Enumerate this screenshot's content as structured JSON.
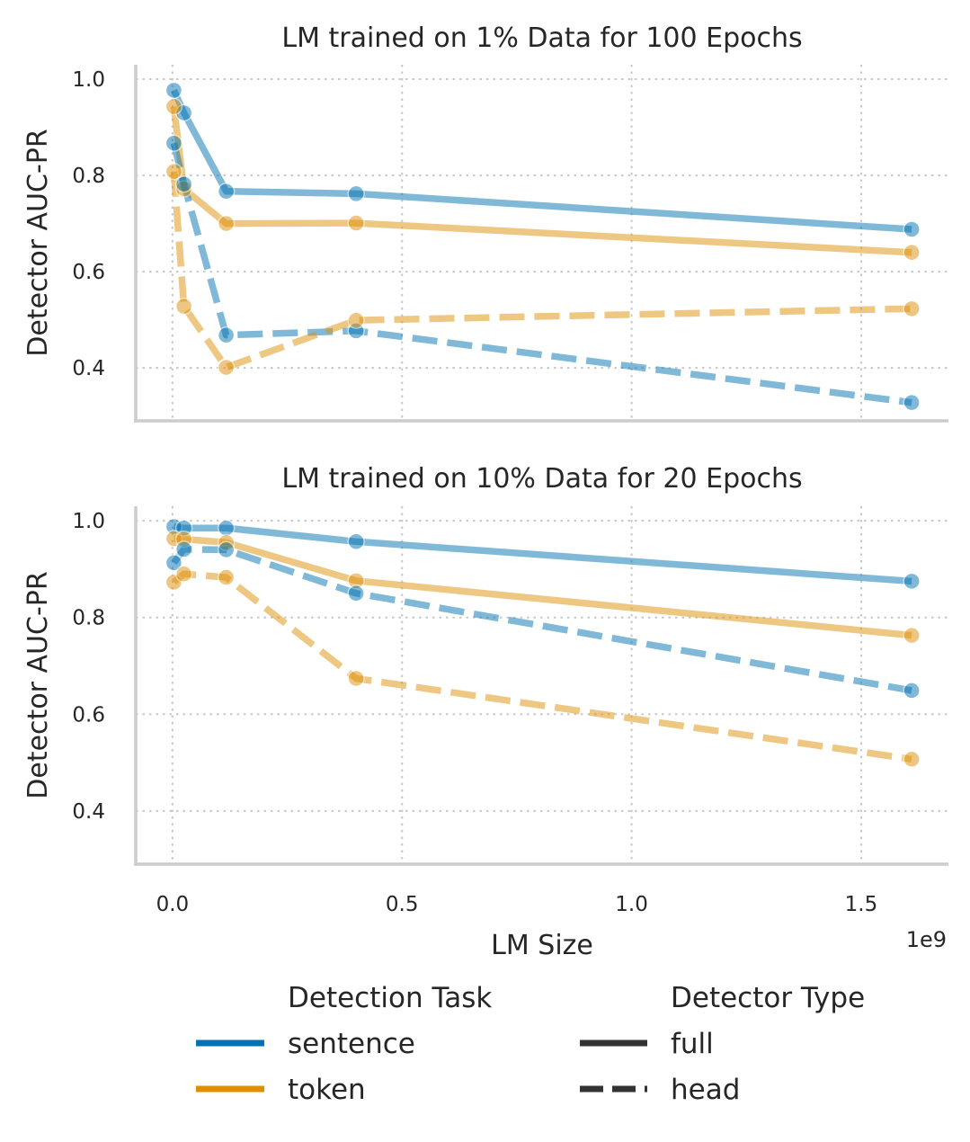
{
  "chart_data": [
    {
      "type": "line",
      "title": "LM trained on 1% Data for 100 Epochs",
      "xlabel": "",
      "ylabel": "Detector AUC-PR",
      "x_offset_label": "",
      "xlim": [
        -0.08,
        1.69
      ],
      "ylim": [
        0.29,
        1.03
      ],
      "xticks": [
        0.0,
        0.5,
        1.0,
        1.5
      ],
      "xtick_labels": [],
      "yticks": [
        0.4,
        0.6,
        0.8,
        1.0
      ],
      "ytick_labels": [
        "0.4",
        "0.6",
        "0.8",
        "1.0"
      ],
      "x_unit_multiplier": 1000000000,
      "grid": true,
      "series": [
        {
          "task": "sentence",
          "type": "full",
          "x": [
            0.003,
            0.025,
            0.117,
            0.4,
            1.61
          ],
          "y": [
            0.977,
            0.93,
            0.767,
            0.762,
            0.688
          ]
        },
        {
          "task": "token",
          "type": "full",
          "x": [
            0.003,
            0.025,
            0.117,
            0.4,
            1.61
          ],
          "y": [
            0.943,
            0.772,
            0.7,
            0.701,
            0.64
          ]
        },
        {
          "task": "sentence",
          "type": "head",
          "x": [
            0.003,
            0.025,
            0.117,
            0.4,
            1.61
          ],
          "y": [
            0.867,
            0.782,
            0.468,
            0.477,
            0.328
          ]
        },
        {
          "task": "token",
          "type": "head",
          "x": [
            0.003,
            0.025,
            0.117,
            0.4,
            1.61
          ],
          "y": [
            0.808,
            0.528,
            0.401,
            0.499,
            0.523
          ]
        }
      ]
    },
    {
      "type": "line",
      "title": "LM trained on 10% Data for 20 Epochs",
      "xlabel": "LM Size",
      "ylabel": "Detector AUC-PR",
      "x_offset_label": "1e9",
      "xlim": [
        -0.08,
        1.69
      ],
      "ylim": [
        0.29,
        1.03
      ],
      "xticks": [
        0.0,
        0.5,
        1.0,
        1.5
      ],
      "xtick_labels": [
        "0.0",
        "0.5",
        "1.0",
        "1.5"
      ],
      "yticks": [
        0.4,
        0.6,
        0.8,
        1.0
      ],
      "ytick_labels": [
        "0.4",
        "0.6",
        "0.8",
        "1.0"
      ],
      "x_unit_multiplier": 1000000000,
      "grid": true,
      "series": [
        {
          "task": "sentence",
          "type": "full",
          "x": [
            0.003,
            0.025,
            0.117,
            0.4,
            1.61
          ],
          "y": [
            0.988,
            0.985,
            0.985,
            0.957,
            0.875
          ]
        },
        {
          "task": "token",
          "type": "full",
          "x": [
            0.003,
            0.025,
            0.117,
            0.4,
            1.61
          ],
          "y": [
            0.963,
            0.962,
            0.955,
            0.876,
            0.763
          ]
        },
        {
          "task": "sentence",
          "type": "head",
          "x": [
            0.003,
            0.025,
            0.117,
            0.4,
            1.61
          ],
          "y": [
            0.913,
            0.941,
            0.94,
            0.85,
            0.649
          ]
        },
        {
          "task": "token",
          "type": "head",
          "x": [
            0.003,
            0.025,
            0.117,
            0.4,
            1.61
          ],
          "y": [
            0.873,
            0.89,
            0.883,
            0.674,
            0.507
          ]
        }
      ]
    }
  ],
  "legend": {
    "placement": "bottom-center",
    "task_title": "Detection Task",
    "tasks": [
      {
        "key": "sentence",
        "label": "sentence",
        "color": "#0173b2"
      },
      {
        "key": "token",
        "label": "token",
        "color": "#de8f05"
      }
    ],
    "type_title": "Detector Type",
    "types": [
      {
        "key": "full",
        "label": "full",
        "dash": "solid"
      },
      {
        "key": "head",
        "label": "head",
        "dash": "dashed"
      }
    ],
    "type_swatch_color": "#333333"
  }
}
